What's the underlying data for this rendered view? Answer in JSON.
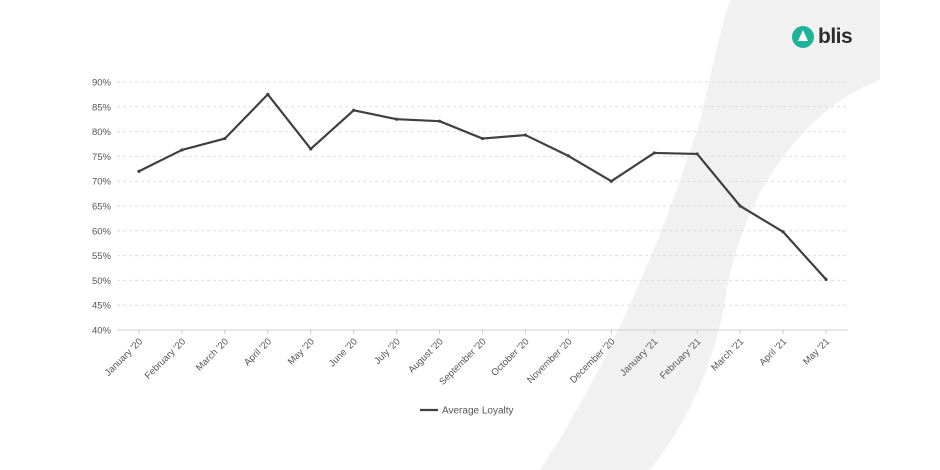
{
  "brand": {
    "name": "blis",
    "color": "#1fb39a"
  },
  "chart_data": {
    "type": "line",
    "title": "",
    "xlabel": "",
    "ylabel": "",
    "ylim": [
      40,
      90
    ],
    "y_ticks": [
      "40%",
      "45%",
      "50%",
      "55%",
      "60%",
      "65%",
      "70%",
      "75%",
      "80%",
      "85%",
      "90%"
    ],
    "grid": true,
    "legend_position": "bottom",
    "categories": [
      "January '20",
      "February '20",
      "March '20",
      "April '20",
      "May '20",
      "June '20",
      "July '20",
      "August '20",
      "September '20",
      "October '20",
      "November '20",
      "December '20",
      "January '21",
      "February '21",
      "March '21",
      "April '21",
      "May '21"
    ],
    "series": [
      {
        "name": "Average Loyalty",
        "color": "#404040",
        "values": [
          72,
          76.3,
          78.6,
          87.5,
          76.5,
          84.3,
          82.5,
          82.1,
          78.6,
          79.3,
          75.1,
          70,
          75.7,
          75.5,
          65,
          59.8,
          50.2
        ]
      }
    ]
  }
}
